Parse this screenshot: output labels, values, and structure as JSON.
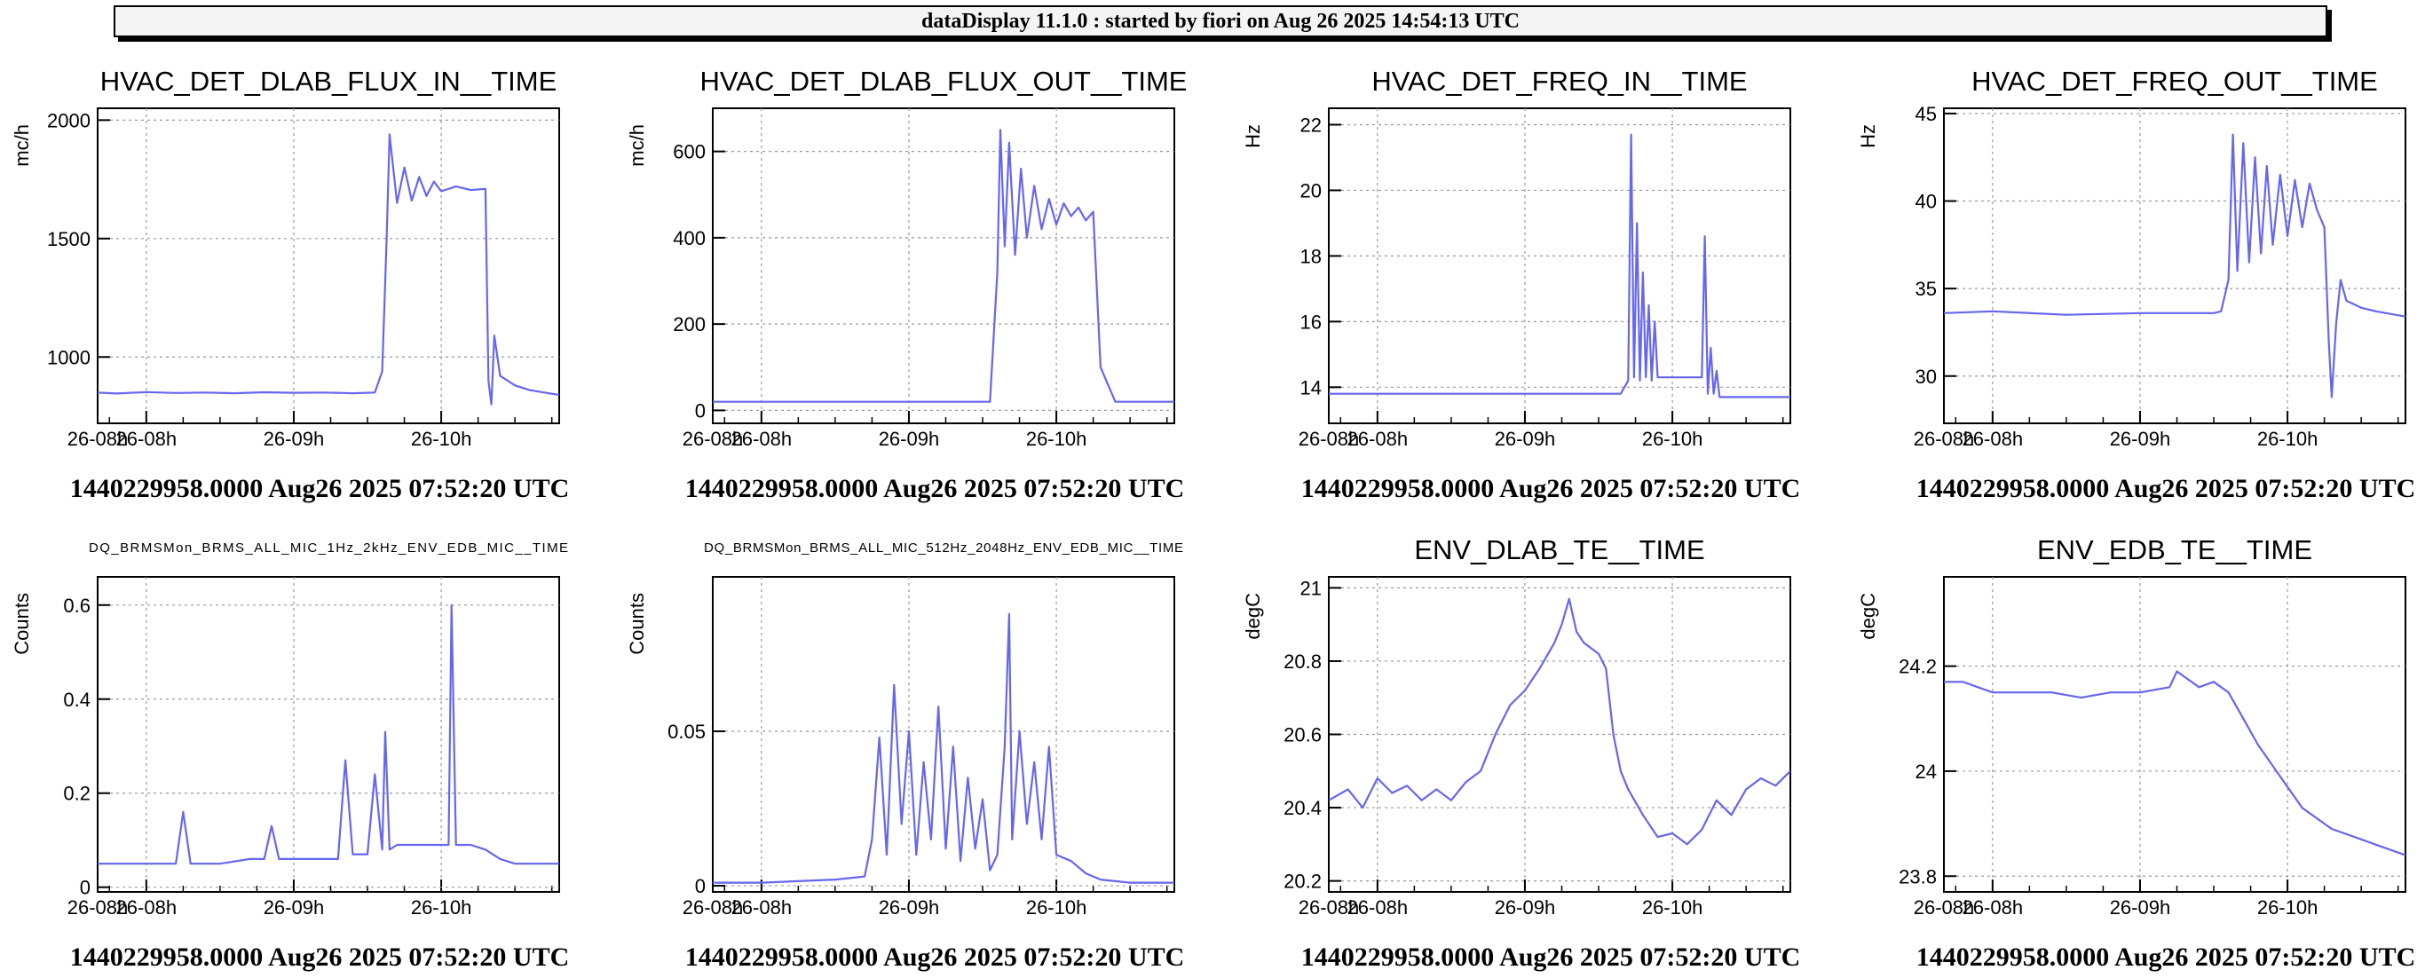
{
  "window": {
    "title": "dataDisplay 11.1.0 : started by fiori on Aug 26 2025 14:54:13 UTC"
  },
  "style": {
    "line_color": "#6666ee",
    "grid_color": "#999999"
  },
  "chart_data": [
    {
      "type": "line",
      "title": "HVAC_DET_DLAB_FLUX_IN__TIME",
      "ylabel": "mc/h",
      "xlim": [
        7.67,
        10.8
      ],
      "ylim": [
        720,
        2050
      ],
      "xticks": [
        8,
        9,
        10
      ],
      "xtick_labels": [
        "26-08h",
        "26-09h",
        "26-10h"
      ],
      "yticks": [
        1000,
        1500,
        2000
      ],
      "ytick_labels": [
        "1000",
        "1500",
        "2000"
      ],
      "grid": true,
      "footer": "1440229958.0000 Aug26 2025 07:52:20 UTC",
      "series": [
        {
          "x": [
            7.67,
            7.8,
            8.0,
            8.2,
            8.4,
            8.6,
            8.8,
            9.0,
            9.2,
            9.4,
            9.55,
            9.6,
            9.63,
            9.65,
            9.7,
            9.75,
            9.8,
            9.85,
            9.9,
            9.95,
            10.0,
            10.1,
            10.2,
            10.3,
            10.32,
            10.34,
            10.36,
            10.4,
            10.5,
            10.6,
            10.7,
            10.8
          ],
          "y": [
            850,
            846,
            852,
            848,
            850,
            847,
            851,
            849,
            850,
            847,
            850,
            940,
            1500,
            1940,
            1650,
            1800,
            1660,
            1760,
            1680,
            1740,
            1700,
            1720,
            1705,
            1710,
            900,
            800,
            1090,
            920,
            880,
            860,
            850,
            840
          ]
        }
      ]
    },
    {
      "type": "line",
      "title": "HVAC_DET_DLAB_FLUX_OUT__TIME",
      "ylabel": "mc/h",
      "xlim": [
        7.67,
        10.8
      ],
      "ylim": [
        -30,
        700
      ],
      "xticks": [
        8,
        9,
        10
      ],
      "xtick_labels": [
        "26-08h",
        "26-09h",
        "26-10h"
      ],
      "yticks": [
        0,
        200,
        400,
        600
      ],
      "ytick_labels": [
        "0",
        "200",
        "400",
        "600"
      ],
      "grid": true,
      "footer": "1440229958.0000 Aug26 2025 07:52:20 UTC",
      "series": [
        {
          "x": [
            7.67,
            8.0,
            8.5,
            9.0,
            9.5,
            9.55,
            9.6,
            9.62,
            9.65,
            9.68,
            9.72,
            9.76,
            9.8,
            9.85,
            9.9,
            9.95,
            10.0,
            10.05,
            10.1,
            10.15,
            10.2,
            10.25,
            10.3,
            10.4,
            10.5,
            10.8
          ],
          "y": [
            20,
            20,
            20,
            20,
            20,
            20,
            320,
            650,
            380,
            620,
            360,
            560,
            400,
            520,
            420,
            490,
            430,
            480,
            450,
            470,
            440,
            460,
            100,
            20,
            20,
            20
          ]
        }
      ]
    },
    {
      "type": "line",
      "title": "HVAC_DET_FREQ_IN__TIME",
      "ylabel": "Hz",
      "xlim": [
        7.67,
        10.8
      ],
      "ylim": [
        12.9,
        22.5
      ],
      "xticks": [
        8,
        9,
        10
      ],
      "xtick_labels": [
        "26-08h",
        "26-09h",
        "26-10h"
      ],
      "yticks": [
        14,
        16,
        18,
        20,
        22
      ],
      "ytick_labels": [
        "14",
        "16",
        "18",
        "20",
        "22"
      ],
      "grid": true,
      "footer": "1440229958.0000 Aug26 2025 07:52:20 UTC",
      "series": [
        {
          "x": [
            7.67,
            8.0,
            8.5,
            9.0,
            9.5,
            9.65,
            9.7,
            9.72,
            9.74,
            9.76,
            9.78,
            9.8,
            9.82,
            9.84,
            9.86,
            9.88,
            9.9,
            9.92,
            10.0,
            10.1,
            10.2,
            10.22,
            10.24,
            10.26,
            10.28,
            10.3,
            10.32,
            10.35,
            10.5,
            10.8
          ],
          "y": [
            13.8,
            13.8,
            13.8,
            13.8,
            13.8,
            13.8,
            14.2,
            21.7,
            14.3,
            19.0,
            14.2,
            17.5,
            14.3,
            16.5,
            14.2,
            16.0,
            14.3,
            14.3,
            14.3,
            14.3,
            14.3,
            18.6,
            13.8,
            15.2,
            13.8,
            14.5,
            13.7,
            13.7,
            13.7,
            13.7
          ]
        }
      ]
    },
    {
      "type": "line",
      "title": "HVAC_DET_FREQ_OUT__TIME",
      "ylabel": "Hz",
      "xlim": [
        7.67,
        10.8
      ],
      "ylim": [
        27.3,
        45.3
      ],
      "xticks": [
        8,
        9,
        10
      ],
      "xtick_labels": [
        "26-08h",
        "26-09h",
        "26-10h"
      ],
      "yticks": [
        30,
        35,
        40,
        45
      ],
      "ytick_labels": [
        "30",
        "35",
        "40",
        "45"
      ],
      "grid": true,
      "footer": "1440229958.0000 Aug26 2025 07:52:20 UTC",
      "series": [
        {
          "x": [
            7.67,
            8.0,
            8.5,
            9.0,
            9.5,
            9.55,
            9.6,
            9.63,
            9.66,
            9.7,
            9.74,
            9.78,
            9.82,
            9.86,
            9.9,
            9.95,
            10.0,
            10.05,
            10.1,
            10.15,
            10.2,
            10.25,
            10.28,
            10.3,
            10.33,
            10.36,
            10.4,
            10.5,
            10.6,
            10.8
          ],
          "y": [
            33.6,
            33.7,
            33.5,
            33.6,
            33.6,
            33.7,
            35.5,
            43.8,
            36.0,
            43.3,
            36.5,
            42.5,
            37.0,
            42.0,
            37.5,
            41.5,
            38.0,
            41.2,
            38.5,
            41.0,
            39.5,
            38.5,
            32.0,
            28.8,
            33.0,
            35.5,
            34.3,
            33.9,
            33.7,
            33.4
          ]
        }
      ]
    },
    {
      "type": "line",
      "title": "DQ_BRMSMon_BRMS_ALL_MIC_1Hz_2kHz_ENV_EDB_MIC__TIME",
      "ylabel": "Counts",
      "xlim": [
        7.67,
        10.8
      ],
      "ylim": [
        -0.01,
        0.66
      ],
      "xticks": [
        8,
        9,
        10
      ],
      "xtick_labels": [
        "26-08h",
        "26-09h",
        "26-10h"
      ],
      "yticks": [
        0,
        0.2,
        0.4,
        0.6
      ],
      "ytick_labels": [
        "0",
        "0.2",
        "0.4",
        "0.6"
      ],
      "grid": true,
      "footer": "1440229958.0000 Aug26 2025 07:52:20 UTC",
      "series": [
        {
          "x": [
            7.67,
            8.0,
            8.2,
            8.25,
            8.3,
            8.5,
            8.7,
            8.8,
            8.85,
            8.9,
            9.0,
            9.1,
            9.2,
            9.3,
            9.35,
            9.4,
            9.5,
            9.55,
            9.6,
            9.62,
            9.65,
            9.7,
            9.75,
            9.8,
            9.9,
            10.0,
            10.05,
            10.07,
            10.1,
            10.2,
            10.3,
            10.4,
            10.5,
            10.8
          ],
          "y": [
            0.05,
            0.05,
            0.05,
            0.16,
            0.05,
            0.05,
            0.06,
            0.06,
            0.13,
            0.06,
            0.06,
            0.06,
            0.06,
            0.06,
            0.27,
            0.07,
            0.07,
            0.24,
            0.08,
            0.33,
            0.08,
            0.09,
            0.09,
            0.09,
            0.09,
            0.09,
            0.09,
            0.6,
            0.09,
            0.09,
            0.08,
            0.06,
            0.05,
            0.05
          ]
        }
      ]
    },
    {
      "type": "line",
      "title": "DQ_BRMSMon_BRMS_ALL_MIC_512Hz_2048Hz_ENV_EDB_MIC__TIME",
      "ylabel": "Counts",
      "xlim": [
        7.67,
        10.8
      ],
      "ylim": [
        -0.002,
        0.1
      ],
      "xticks": [
        8,
        9,
        10
      ],
      "xtick_labels": [
        "26-08h",
        "26-09h",
        "26-10h"
      ],
      "yticks": [
        0,
        0.05
      ],
      "ytick_labels": [
        "0",
        "0.05"
      ],
      "grid": true,
      "footer": "1440229958.0000 Aug26 2025 07:52:20 UTC",
      "series": [
        {
          "x": [
            7.67,
            8.0,
            8.5,
            8.7,
            8.75,
            8.8,
            8.85,
            8.9,
            8.95,
            9.0,
            9.05,
            9.1,
            9.15,
            9.2,
            9.25,
            9.3,
            9.35,
            9.4,
            9.45,
            9.5,
            9.55,
            9.6,
            9.65,
            9.68,
            9.7,
            9.75,
            9.8,
            9.85,
            9.9,
            9.95,
            10.0,
            10.1,
            10.2,
            10.3,
            10.5,
            10.8
          ],
          "y": [
            0.001,
            0.001,
            0.002,
            0.003,
            0.015,
            0.048,
            0.01,
            0.065,
            0.02,
            0.05,
            0.01,
            0.04,
            0.015,
            0.058,
            0.012,
            0.045,
            0.008,
            0.035,
            0.012,
            0.028,
            0.005,
            0.01,
            0.045,
            0.088,
            0.015,
            0.05,
            0.02,
            0.04,
            0.015,
            0.045,
            0.01,
            0.008,
            0.004,
            0.002,
            0.001,
            0.001
          ]
        }
      ]
    },
    {
      "type": "line",
      "title": "ENV_DLAB_TE__TIME",
      "ylabel": "degC",
      "xlim": [
        7.67,
        10.8
      ],
      "ylim": [
        20.17,
        21.03
      ],
      "xticks": [
        8,
        9,
        10
      ],
      "xtick_labels": [
        "26-08h",
        "26-09h",
        "26-10h"
      ],
      "yticks": [
        20.2,
        20.4,
        20.6,
        20.8,
        21
      ],
      "ytick_labels": [
        "20.2",
        "20.4",
        "20.6",
        "20.8",
        "21"
      ],
      "grid": true,
      "footer": "1440229958.0000 Aug26 2025 07:52:20 UTC",
      "series": [
        {
          "x": [
            7.67,
            7.8,
            7.9,
            8.0,
            8.1,
            8.2,
            8.3,
            8.4,
            8.5,
            8.6,
            8.7,
            8.8,
            8.9,
            9.0,
            9.1,
            9.2,
            9.25,
            9.3,
            9.35,
            9.4,
            9.5,
            9.55,
            9.6,
            9.65,
            9.7,
            9.8,
            9.9,
            10.0,
            10.1,
            10.2,
            10.3,
            10.4,
            10.5,
            10.6,
            10.7,
            10.8
          ],
          "y": [
            20.42,
            20.45,
            20.4,
            20.48,
            20.44,
            20.46,
            20.42,
            20.45,
            20.42,
            20.47,
            20.5,
            20.6,
            20.68,
            20.72,
            20.78,
            20.85,
            20.9,
            20.97,
            20.88,
            20.85,
            20.82,
            20.78,
            20.6,
            20.5,
            20.45,
            20.38,
            20.32,
            20.33,
            20.3,
            20.34,
            20.42,
            20.38,
            20.45,
            20.48,
            20.46,
            20.5
          ]
        }
      ]
    },
    {
      "type": "line",
      "title": "ENV_EDB_TE__TIME",
      "ylabel": "degC",
      "xlim": [
        7.67,
        10.8
      ],
      "ylim": [
        23.77,
        24.37
      ],
      "xticks": [
        8,
        9,
        10
      ],
      "xtick_labels": [
        "26-08h",
        "26-09h",
        "26-10h"
      ],
      "yticks": [
        23.8,
        24,
        24.2
      ],
      "ytick_labels": [
        "23.8",
        "24",
        "24.2"
      ],
      "grid": true,
      "footer": "1440229958.0000 Aug26 2025 07:52:20 UTC",
      "series": [
        {
          "x": [
            7.67,
            7.8,
            8.0,
            8.2,
            8.4,
            8.6,
            8.8,
            9.0,
            9.2,
            9.25,
            9.4,
            9.5,
            9.6,
            9.7,
            9.8,
            9.9,
            10.0,
            10.1,
            10.2,
            10.3,
            10.4,
            10.5,
            10.6,
            10.7,
            10.8
          ],
          "y": [
            24.17,
            24.17,
            24.15,
            24.15,
            24.15,
            24.14,
            24.15,
            24.15,
            24.16,
            24.19,
            24.16,
            24.17,
            24.15,
            24.1,
            24.05,
            24.01,
            23.97,
            23.93,
            23.91,
            23.89,
            23.88,
            23.87,
            23.86,
            23.85,
            23.84
          ]
        }
      ]
    }
  ]
}
